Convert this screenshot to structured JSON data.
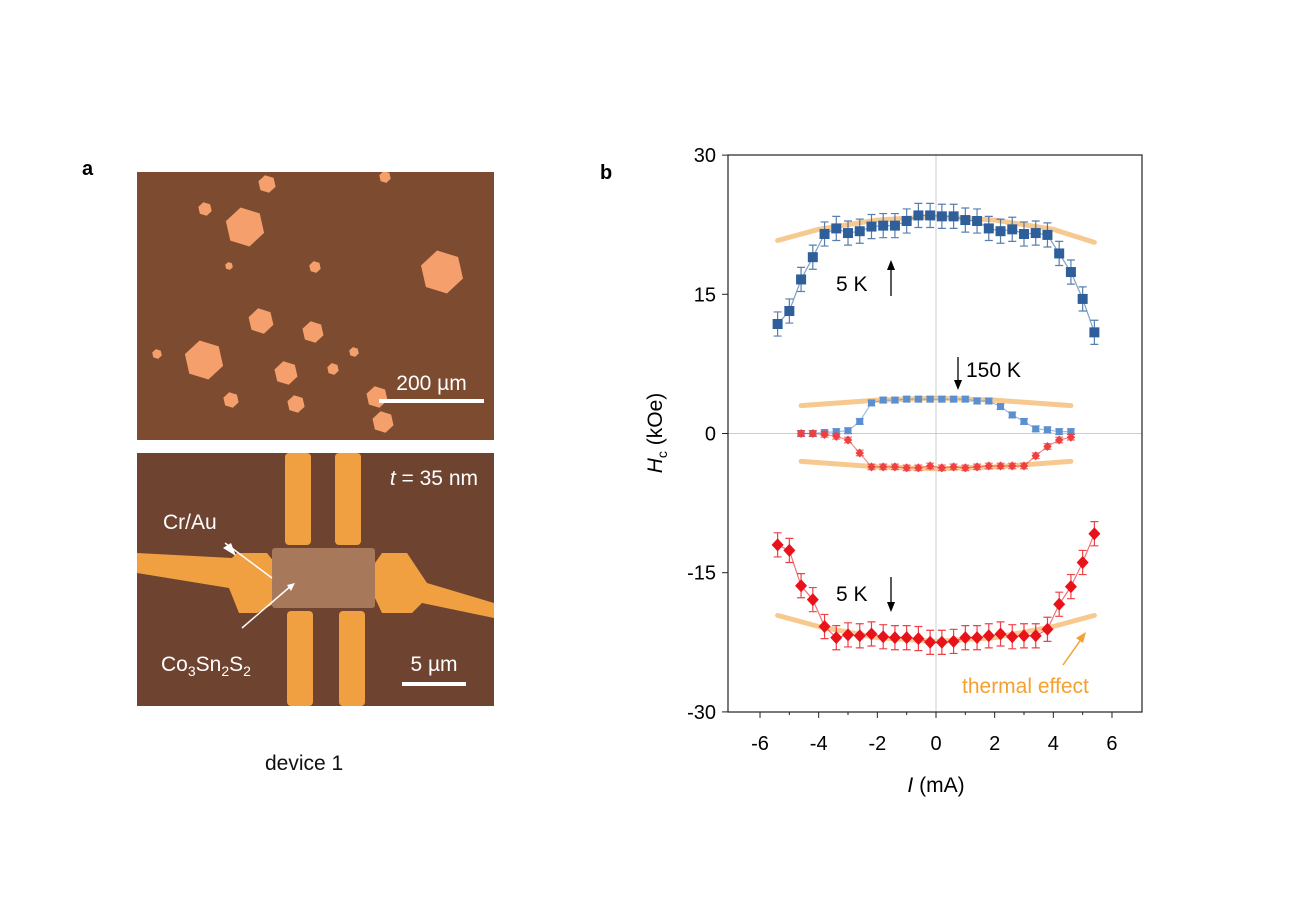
{
  "panel_a": {
    "letter": "a",
    "top_image": {
      "scale_bar_label": "200 µm"
    },
    "bottom_image": {
      "thickness_label_var": "t",
      "thickness_label_rest": " = 35 nm",
      "electrode_label": "Cr/Au",
      "flake_label_parts": [
        "Co",
        "3",
        "Sn",
        "2",
        "S",
        "2"
      ],
      "scale_bar_label": "5 µm"
    },
    "caption": "device 1"
  },
  "panel_b": {
    "letter": "b"
  },
  "colors": {
    "blue_5K": "#2e5f9a",
    "blue_150K": "#5b8fd0",
    "red": "#e8121a",
    "red_150K": "#ee4040",
    "thermal": "#f7c98f",
    "thermal_text": "#f5a030"
  },
  "chart_data": {
    "type": "scatter",
    "title": "",
    "xlabel_var": "I",
    "xlabel_unit": " (mA)",
    "ylabel_var": "H",
    "ylabel_sub": "c",
    "ylabel_unit": " (kOe)",
    "xlim": [
      -7,
      7
    ],
    "ylim": [
      -30,
      30
    ],
    "xticks": [
      -6,
      -4,
      -2,
      0,
      2,
      4,
      6
    ],
    "yticks": [
      30,
      15,
      0,
      -15,
      -30
    ],
    "grid": "zero lines only",
    "annotations": {
      "top_5K": "5 K",
      "mid_150K": "150 K",
      "bottom_5K": "5 K",
      "thermal": "thermal effect"
    },
    "series": [
      {
        "name": "5 K up",
        "marker": "square",
        "error": 1.3,
        "x": [
          -5.4,
          -5.0,
          -4.6,
          -4.2,
          -3.8,
          -3.4,
          -3.0,
          -2.6,
          -2.2,
          -1.8,
          -1.4,
          -1.0,
          -0.6,
          -0.2,
          0.2,
          0.6,
          1.0,
          1.4,
          1.8,
          2.2,
          2.6,
          3.0,
          3.4,
          3.8,
          4.2,
          4.6,
          5.0,
          5.4
        ],
        "y": [
          11.8,
          13.2,
          16.6,
          19.0,
          21.5,
          22.1,
          21.6,
          21.8,
          22.3,
          22.4,
          22.4,
          22.9,
          23.5,
          23.5,
          23.4,
          23.4,
          23.0,
          22.9,
          22.1,
          21.8,
          22.0,
          21.5,
          21.6,
          21.4,
          19.4,
          17.4,
          14.5,
          10.9
        ]
      },
      {
        "name": "5 K down",
        "marker": "diamond",
        "error": 1.3,
        "x": [
          -5.4,
          -5.0,
          -4.6,
          -4.2,
          -3.8,
          -3.4,
          -3.0,
          -2.6,
          -2.2,
          -1.8,
          -1.4,
          -1.0,
          -0.6,
          -0.2,
          0.2,
          0.6,
          1.0,
          1.4,
          1.8,
          2.2,
          2.6,
          3.0,
          3.4,
          3.8,
          4.2,
          4.6,
          5.0,
          5.4
        ],
        "y": [
          -12.0,
          -12.6,
          -16.4,
          -17.9,
          -20.8,
          -22.0,
          -21.7,
          -21.8,
          -21.6,
          -21.9,
          -22.0,
          -22.0,
          -22.1,
          -22.5,
          -22.5,
          -22.4,
          -22.0,
          -22.0,
          -21.8,
          -21.6,
          -21.9,
          -21.8,
          -21.8,
          -21.1,
          -18.4,
          -16.5,
          -13.9,
          -10.8
        ]
      },
      {
        "name": "150 K up",
        "marker": "square",
        "error": 0.3,
        "x": [
          -4.6,
          -4.2,
          -3.8,
          -3.4,
          -3.0,
          -2.6,
          -2.2,
          -1.8,
          -1.4,
          -1.0,
          -0.6,
          -0.2,
          0.2,
          0.6,
          1.0,
          1.4,
          1.8,
          2.2,
          2.6,
          3.0,
          3.4,
          3.8,
          4.2,
          4.6
        ],
        "y": [
          0.0,
          0.0,
          0.1,
          0.2,
          0.3,
          1.3,
          3.3,
          3.6,
          3.6,
          3.7,
          3.7,
          3.7,
          3.7,
          3.7,
          3.7,
          3.5,
          3.5,
          2.9,
          2.0,
          1.3,
          0.5,
          0.4,
          0.2,
          0.2
        ]
      },
      {
        "name": "150 K down",
        "marker": "diamond",
        "error": 0.3,
        "x": [
          -4.6,
          -4.2,
          -3.8,
          -3.4,
          -3.0,
          -2.6,
          -2.2,
          -1.8,
          -1.4,
          -1.0,
          -0.6,
          -0.2,
          0.2,
          0.6,
          1.0,
          1.4,
          1.8,
          2.2,
          2.6,
          3.0,
          3.4,
          3.8,
          4.2,
          4.6
        ],
        "y": [
          0.0,
          0.0,
          -0.1,
          -0.3,
          -0.7,
          -2.1,
          -3.6,
          -3.6,
          -3.6,
          -3.7,
          -3.7,
          -3.5,
          -3.7,
          -3.6,
          -3.7,
          -3.6,
          -3.5,
          -3.5,
          -3.5,
          -3.5,
          -2.4,
          -1.4,
          -0.7,
          -0.4
        ]
      },
      {
        "name": "thermal effect 5 K up",
        "type": "line",
        "x": [
          -5.4,
          -4,
          -2,
          0,
          2,
          4,
          5.4
        ],
        "y": [
          20.8,
          22.0,
          23.0,
          23.4,
          23.0,
          22.0,
          20.6
        ]
      },
      {
        "name": "thermal effect 5 K down",
        "type": "line",
        "x": [
          -5.4,
          -4,
          -2,
          0,
          2,
          4,
          5.4
        ],
        "y": [
          -19.6,
          -20.8,
          -22.0,
          -22.4,
          -22.0,
          -20.8,
          -19.6
        ]
      },
      {
        "name": "thermal effect 150 K up",
        "type": "line",
        "x": [
          -4.6,
          -2,
          0,
          2,
          4.6
        ],
        "y": [
          3.0,
          3.6,
          3.8,
          3.6,
          3.0
        ]
      },
      {
        "name": "thermal effect 150 K down",
        "type": "line",
        "x": [
          -4.6,
          -2,
          0,
          2,
          4.6
        ],
        "y": [
          -3.0,
          -3.6,
          -3.8,
          -3.6,
          -3.0
        ]
      }
    ]
  }
}
